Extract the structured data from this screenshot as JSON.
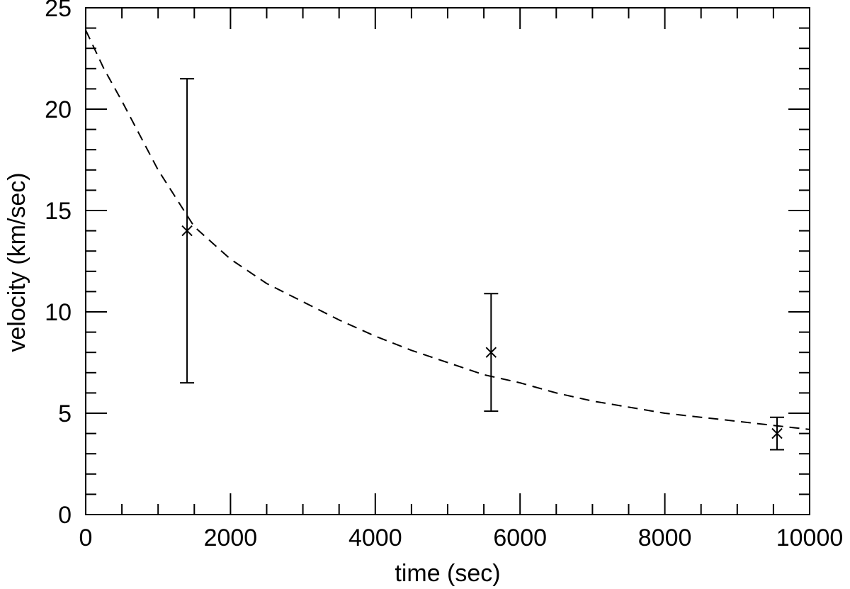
{
  "chart_data": {
    "type": "scatter",
    "xlabel": "time (sec)",
    "ylabel": "velocity (km/sec)",
    "xlim": [
      0,
      10000
    ],
    "ylim": [
      0,
      25
    ],
    "x_ticks": [
      "0",
      "2000",
      "4000",
      "6000",
      "8000",
      "10000"
    ],
    "y_ticks": [
      "0",
      "5",
      "10",
      "15",
      "20",
      "25"
    ],
    "grid": false,
    "points": [
      {
        "x": 1400,
        "y": 14,
        "err_low": 6.5,
        "err_high": 21.5
      },
      {
        "x": 5600,
        "y": 8,
        "err_low": 5.1,
        "err_high": 10.9
      },
      {
        "x": 9550,
        "y": 4,
        "err_low": 3.2,
        "err_high": 4.8
      }
    ],
    "fit_curve": {
      "style": "dashed",
      "x": [
        0,
        250,
        500,
        1000,
        1500,
        2000,
        2500,
        3000,
        3500,
        4000,
        4500,
        5000,
        5500,
        6000,
        6500,
        7000,
        7500,
        8000,
        8500,
        9000,
        9500,
        10000
      ],
      "y": [
        23.9,
        22.0,
        20.4,
        17.0,
        14.2,
        12.6,
        11.4,
        10.5,
        9.6,
        8.8,
        8.1,
        7.5,
        6.9,
        6.5,
        6.0,
        5.6,
        5.3,
        5.0,
        4.8,
        4.6,
        4.4,
        4.2
      ]
    }
  }
}
